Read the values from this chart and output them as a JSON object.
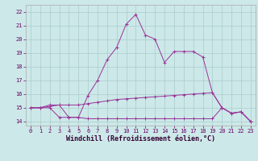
{
  "xlabel": "Windchill (Refroidissement éolien,°C)",
  "background_color": "#cce8e8",
  "grid_color": "#aacccc",
  "line_color": "#993399",
  "xlim": [
    -0.5,
    23.5
  ],
  "ylim": [
    13.7,
    22.5
  ],
  "yticks": [
    14,
    15,
    16,
    17,
    18,
    19,
    20,
    21,
    22
  ],
  "xticks": [
    0,
    1,
    2,
    3,
    4,
    5,
    6,
    7,
    8,
    9,
    10,
    11,
    12,
    13,
    14,
    15,
    16,
    17,
    18,
    19,
    20,
    21,
    22,
    23
  ],
  "series1_x": [
    0,
    1,
    2,
    3,
    4,
    5,
    6,
    7,
    8,
    9,
    10,
    11,
    12,
    13,
    14,
    15,
    16,
    17,
    18,
    19,
    20,
    21,
    22,
    23
  ],
  "series1_y": [
    15.0,
    15.0,
    15.2,
    15.2,
    14.3,
    14.3,
    15.9,
    17.0,
    18.5,
    19.4,
    21.1,
    21.8,
    20.3,
    20.0,
    18.3,
    19.1,
    19.1,
    19.1,
    18.7,
    16.1,
    15.0,
    14.6,
    14.7,
    14.0
  ],
  "series2_x": [
    0,
    1,
    2,
    3,
    4,
    5,
    6,
    7,
    8,
    9,
    10,
    11,
    12,
    13,
    14,
    15,
    16,
    17,
    18,
    19,
    20,
    21,
    22,
    23
  ],
  "series2_y": [
    15.0,
    15.0,
    15.1,
    15.2,
    15.2,
    15.2,
    15.3,
    15.4,
    15.5,
    15.6,
    15.65,
    15.7,
    15.75,
    15.8,
    15.85,
    15.9,
    15.95,
    16.0,
    16.05,
    16.1,
    15.0,
    14.6,
    14.7,
    14.0
  ],
  "series3_x": [
    0,
    1,
    2,
    3,
    4,
    5,
    6,
    7,
    8,
    9,
    10,
    11,
    12,
    13,
    14,
    15,
    16,
    17,
    18,
    19,
    20,
    21,
    22,
    23
  ],
  "series3_y": [
    15.0,
    15.0,
    15.0,
    14.3,
    14.3,
    14.3,
    14.2,
    14.2,
    14.2,
    14.2,
    14.2,
    14.2,
    14.2,
    14.2,
    14.2,
    14.2,
    14.2,
    14.2,
    14.2,
    14.2,
    15.0,
    14.6,
    14.7,
    14.0
  ],
  "xlabel_color": "#330033",
  "tick_color": "#660066",
  "xlabel_fontsize": 6,
  "tick_fontsize": 5
}
